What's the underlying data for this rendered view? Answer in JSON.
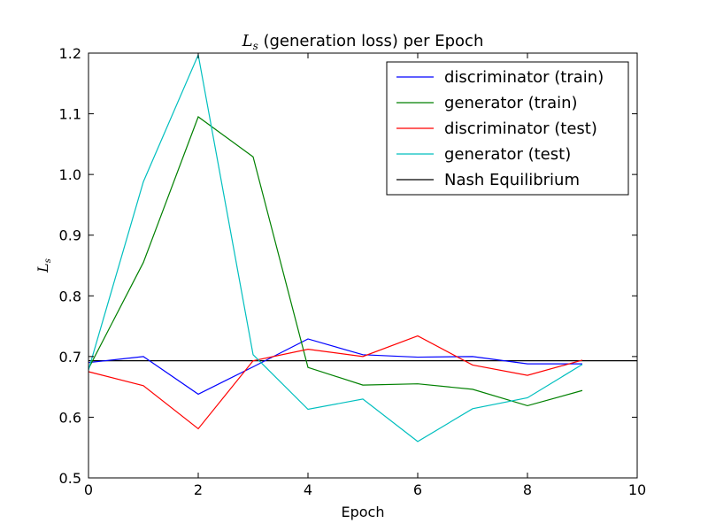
{
  "chart_data": {
    "type": "line",
    "title_math": "L",
    "title_math_sub": "s",
    "title_rest": " (generation loss) per Epoch",
    "xlabel": "Epoch",
    "ylabel_math": "L",
    "ylabel_math_sub": "s",
    "xlim": [
      0,
      10
    ],
    "ylim": [
      0.5,
      1.2
    ],
    "xticks": [
      0,
      2,
      4,
      6,
      8,
      10
    ],
    "xtick_labels": [
      "0",
      "2",
      "4",
      "6",
      "8",
      "10"
    ],
    "yticks": [
      0.5,
      0.6,
      0.7,
      0.8,
      0.9,
      1.0,
      1.1,
      1.2
    ],
    "ytick_labels": [
      "0.5",
      "0.6",
      "0.7",
      "0.8",
      "0.9",
      "1.0",
      "1.1",
      "1.2"
    ],
    "legend_position": "top-right",
    "grid": false,
    "x": [
      0,
      1,
      2,
      3,
      4,
      5,
      6,
      7,
      8,
      9
    ],
    "series": [
      {
        "name": "discriminator (train)",
        "color": "#0000ff",
        "values": [
          0.69,
          0.7,
          0.638,
          0.683,
          0.729,
          0.703,
          0.699,
          0.7,
          0.688,
          0.688
        ]
      },
      {
        "name": "generator (train)",
        "color": "#008000",
        "values": [
          0.68,
          0.855,
          1.095,
          1.029,
          0.682,
          0.653,
          0.655,
          0.646,
          0.619,
          0.644
        ]
      },
      {
        "name": "discriminator (test)",
        "color": "#ff0000",
        "values": [
          0.675,
          0.652,
          0.581,
          0.693,
          0.712,
          0.7,
          0.734,
          0.686,
          0.669,
          0.694
        ]
      },
      {
        "name": "generator (test)",
        "color": "#00bfbf",
        "values": [
          0.678,
          0.988,
          1.197,
          0.703,
          0.613,
          0.63,
          0.56,
          0.614,
          0.632,
          0.687
        ]
      }
    ],
    "hlines": [
      {
        "name": "Nash Equilibrium",
        "color": "#000000",
        "y": 0.693
      }
    ]
  }
}
